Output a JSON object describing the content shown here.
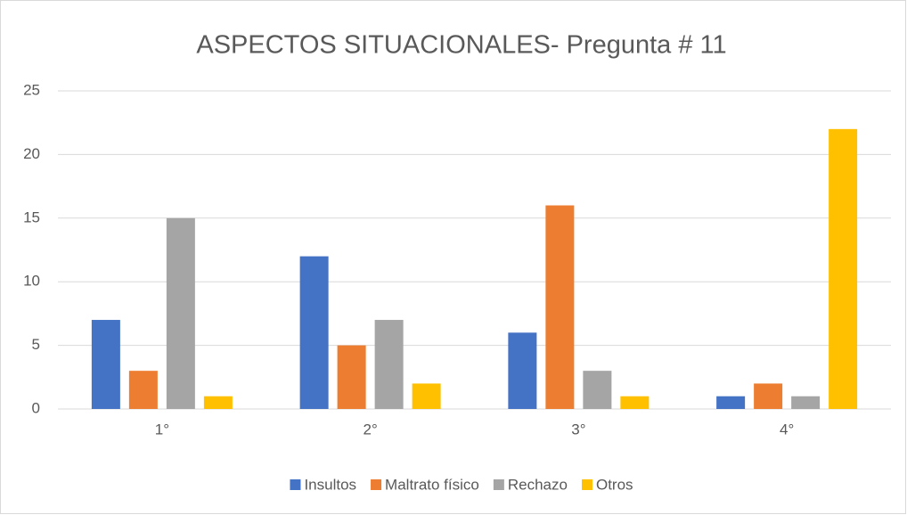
{
  "chart_data": {
    "type": "bar",
    "title": "ASPECTOS SITUACIONALES- Pregunta # 11",
    "categories": [
      "1°",
      "2°",
      "3°",
      "4°"
    ],
    "series": [
      {
        "name": "Insultos",
        "color": "#4472c4",
        "values": [
          7,
          12,
          6,
          1
        ]
      },
      {
        "name": "Maltrato físico",
        "color": "#ed7d31",
        "values": [
          3,
          5,
          16,
          2
        ]
      },
      {
        "name": "Rechazo",
        "color": "#a5a5a5",
        "values": [
          15,
          7,
          3,
          1
        ]
      },
      {
        "name": "Otros",
        "color": "#ffc000",
        "values": [
          1,
          2,
          1,
          22
        ]
      }
    ],
    "ylim": [
      0,
      25
    ],
    "yticks": [
      0,
      5,
      10,
      15,
      20,
      25
    ],
    "grid": true,
    "legend": "bottom"
  }
}
